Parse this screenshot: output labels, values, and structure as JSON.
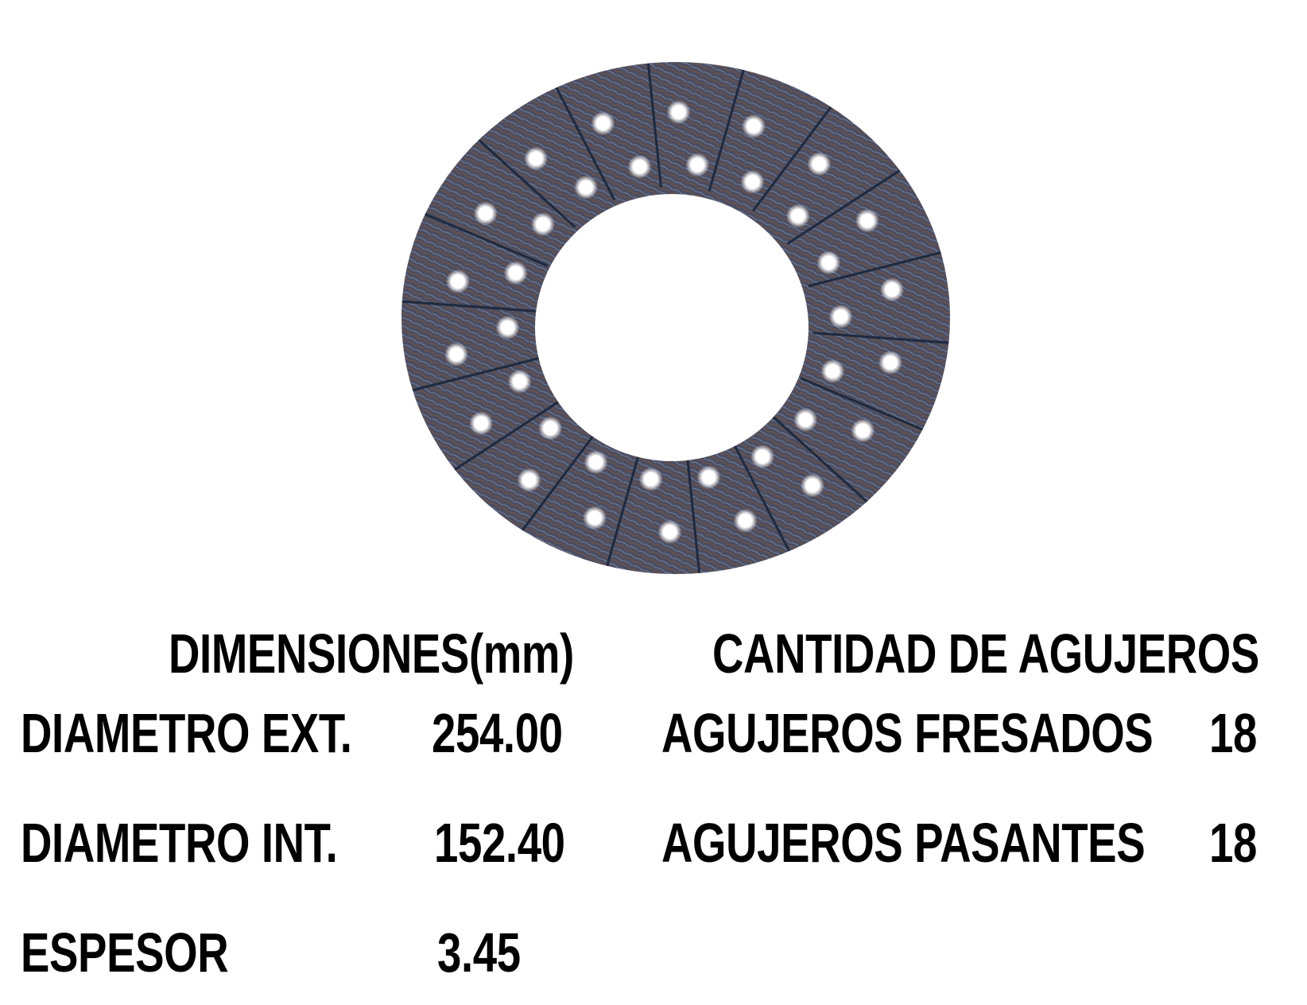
{
  "product_image": {
    "description_icon": "clutch-friction-disc",
    "colors": {
      "surface": "#4a4d62",
      "fiber": "#6a5048",
      "hole": "#ffffff"
    }
  },
  "dimensions": {
    "header": "DIMENSIONES(mm)",
    "rows": [
      {
        "label": "DIAMETRO EXT.",
        "value": "254.00"
      },
      {
        "label": "DIAMETRO INT.",
        "value": "152.40"
      },
      {
        "label": "ESPESOR",
        "value": "3.45"
      }
    ]
  },
  "holes": {
    "header": "CANTIDAD DE AGUJEROS",
    "rows": [
      {
        "label": "AGUJEROS FRESADOS",
        "value": "18"
      },
      {
        "label": "AGUJEROS PASANTES",
        "value": "18"
      }
    ]
  }
}
